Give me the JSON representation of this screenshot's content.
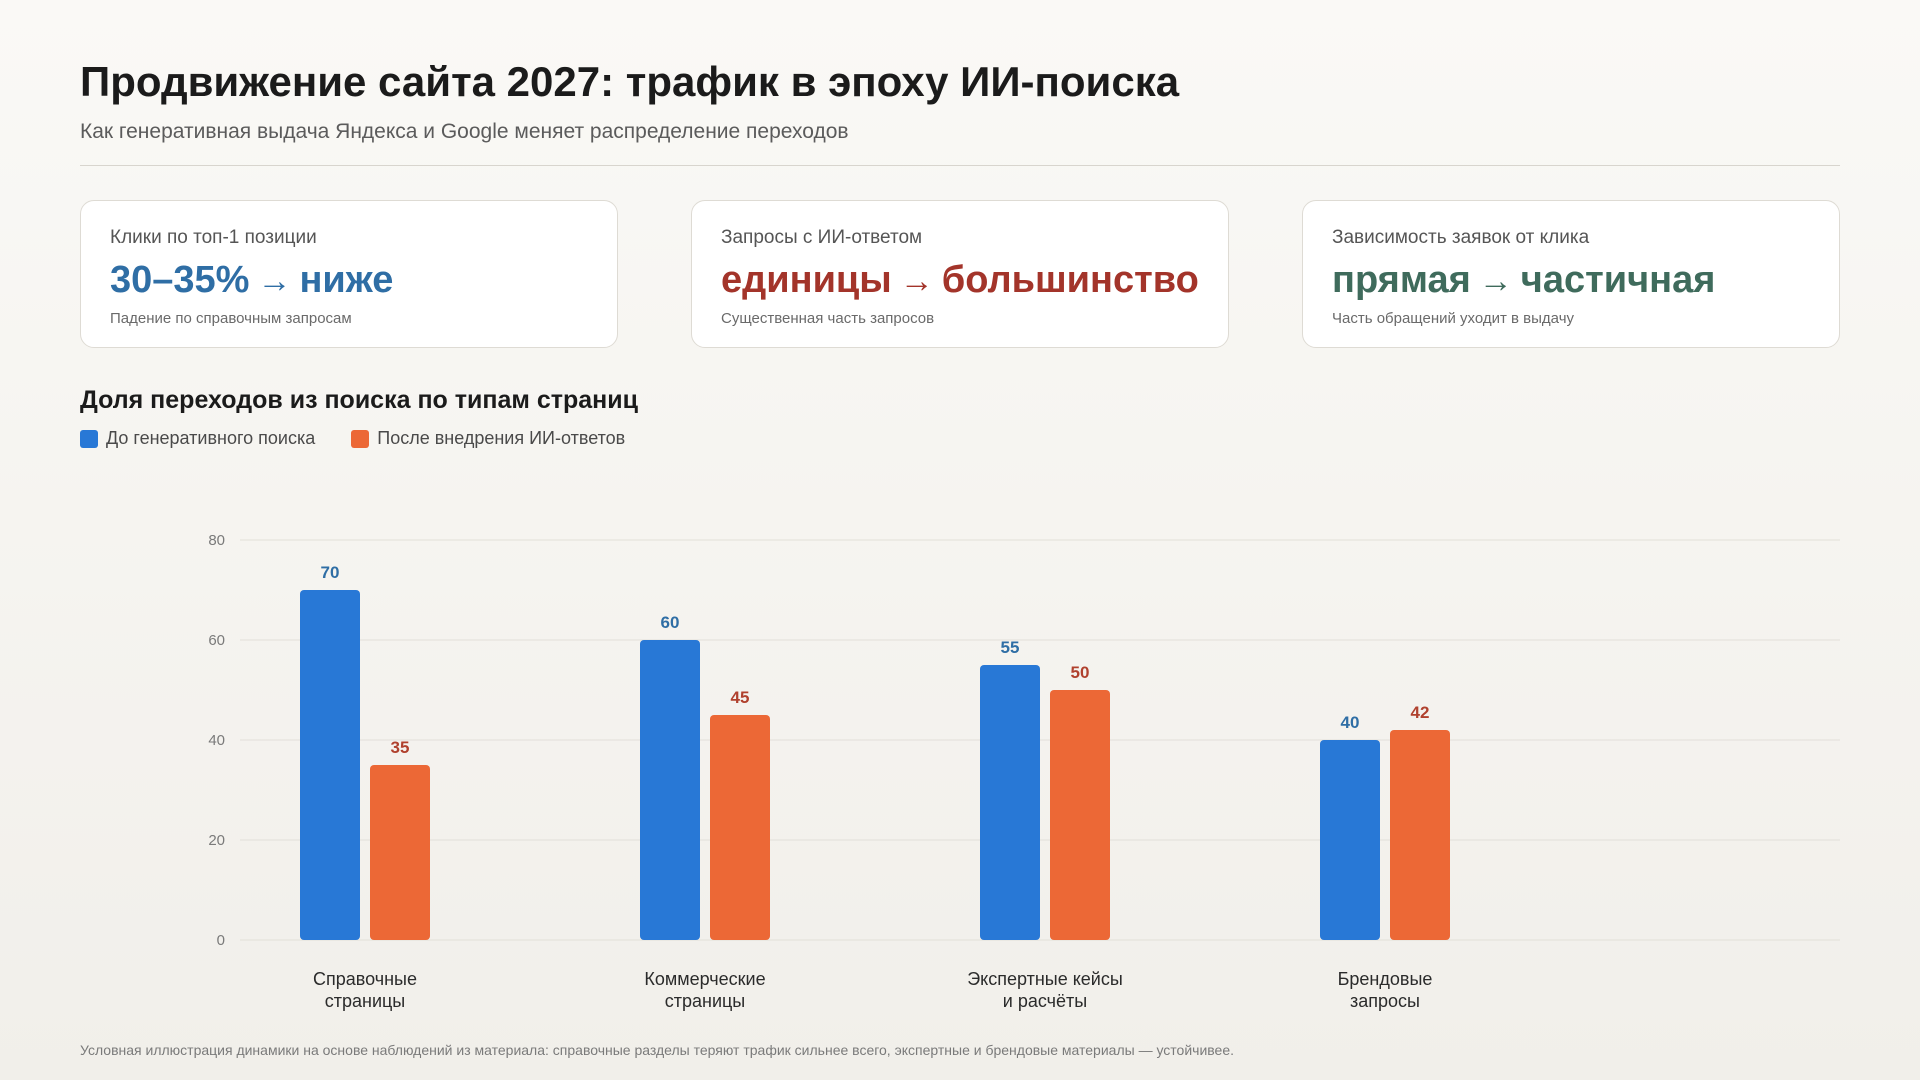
{
  "header": {
    "title": "Продвижение сайта 2027: трафик в эпоху ИИ-поиска",
    "subtitle": "Как генеративная выдача Яндекса и Google меняет распределение переходов"
  },
  "cards": [
    {
      "label": "Клики по топ-1 позиции",
      "value_from": "30–35%",
      "arrow": "→",
      "value_to": "ниже",
      "note": "Падение по справочным запросам",
      "color": "#2f6ea5"
    },
    {
      "label": "Запросы с ИИ-ответом",
      "value_from": "единицы",
      "arrow": "→",
      "value_to": "большинство",
      "note": "Существенная часть запросов",
      "color": "#a3342a"
    },
    {
      "label": "Зависимость заявок от клика",
      "value_from": "прямая",
      "arrow": "→",
      "value_to": "частичная",
      "note": "Часть обращений уходит в выдачу",
      "color": "#3f6b5c"
    }
  ],
  "chart_data": {
    "type": "bar",
    "title": "Доля переходов из поиска по типам страниц",
    "xlabel": "",
    "ylabel": "",
    "ylim": [
      0,
      80
    ],
    "yticks": [
      0,
      20,
      40,
      60,
      80
    ],
    "grid": true,
    "legend_position": "top-left",
    "categories": [
      [
        "Справочные",
        "страницы"
      ],
      [
        "Коммерческие",
        "страницы"
      ],
      [
        "Экспертные кейсы",
        "и расчёты"
      ],
      [
        "Брендовые",
        "запросы"
      ]
    ],
    "series": [
      {
        "name": "До генеративного поиска",
        "values": [
          70,
          60,
          55,
          40
        ],
        "color": "#2878d6",
        "label_color": "#2f6ea5"
      },
      {
        "name": "После внедрения ИИ-ответов",
        "values": [
          35,
          45,
          50,
          42
        ],
        "color": "#ec6836",
        "label_color": "#b0412e"
      }
    ]
  },
  "footnote": "Условная иллюстрация динамики на основе наблюдений из материала: справочные разделы теряют трафик сильнее всего, экспертные и брендовые материалы — устойчивее."
}
